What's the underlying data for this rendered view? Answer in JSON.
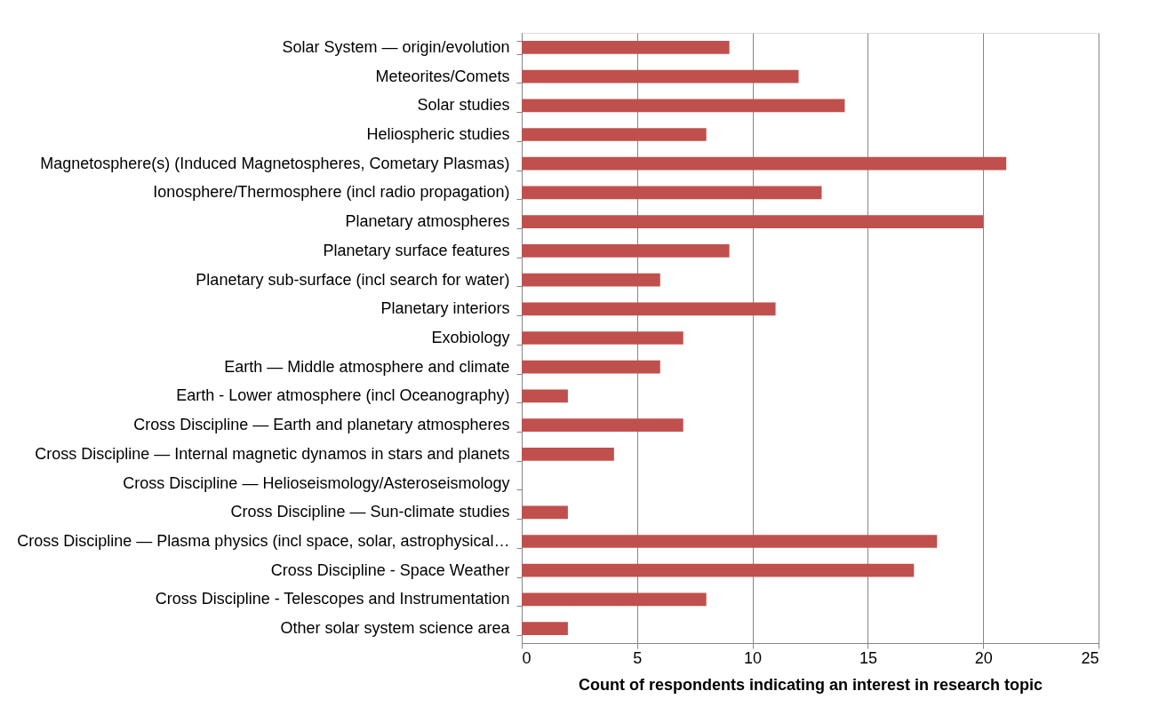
{
  "chart_data": {
    "type": "bar",
    "orientation": "horizontal",
    "xlabel": "Count of respondents indicating an interest in research topic",
    "categories": [
      "Solar System — origin/evolution",
      "Meteorites/Comets",
      "Solar studies",
      "Heliospheric studies",
      "Magnetosphere(s) (Induced Magnetospheres, Cometary Plasmas)",
      "Ionosphere/Thermosphere (incl radio propagation)",
      "Planetary atmospheres",
      "Planetary surface features",
      "Planetary sub-surface (incl search for water)",
      "Planetary interiors",
      "Exobiology",
      "Earth — Middle atmosphere and climate",
      "Earth - Lower atmosphere (incl Oceanography)",
      "Cross Discipline — Earth and planetary atmospheres",
      "Cross Discipline — Internal magnetic dynamos in stars and planets",
      "Cross Discipline — Helioseismology/Asteroseismology",
      "Cross Discipline — Sun-climate studies",
      "Cross Discipline — Plasma physics (incl space, solar, astrophysical…",
      "Cross Discipline - Space Weather",
      "Cross Discipline - Telescopes and Instrumentation",
      "Other solar system science area"
    ],
    "values": [
      9,
      12,
      14,
      8,
      21,
      13,
      20,
      9,
      6,
      11,
      7,
      6,
      2,
      7,
      4,
      0,
      2,
      18,
      17,
      8,
      2
    ],
    "color": "#c0504d",
    "xlim": [
      0,
      25
    ],
    "xticks": [
      0,
      5,
      10,
      15,
      20,
      25
    ],
    "grid": "x"
  }
}
